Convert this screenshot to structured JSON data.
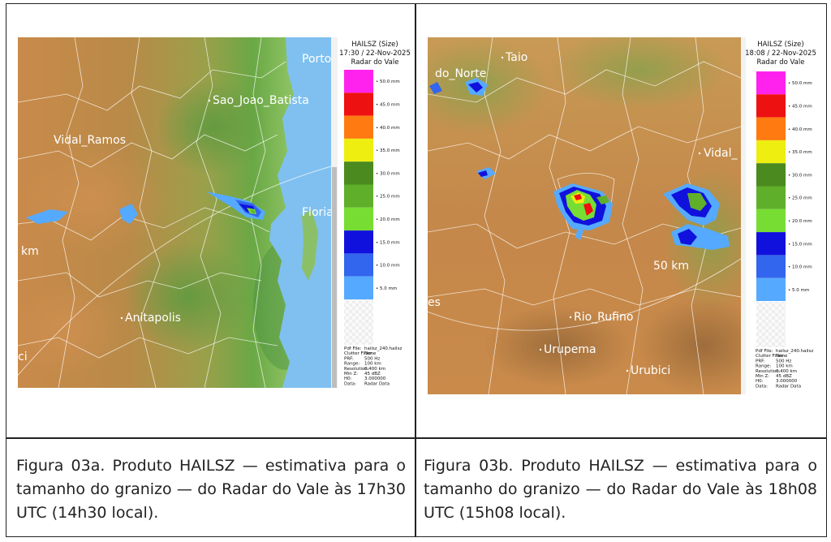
{
  "panel_a": {
    "legend": {
      "title": "HAILSZ (Size)",
      "time": "17:30 / 22-Nov-2025",
      "source": "Radar do Vale",
      "items": [
        {
          "label": "50.0 mm",
          "color": "#ff22ee"
        },
        {
          "label": "45.0 mm",
          "color": "#ee1111"
        },
        {
          "label": "40.0 mm",
          "color": "#ff7a11"
        },
        {
          "label": "35.0 mm",
          "color": "#eeee11"
        },
        {
          "label": "30.0 mm",
          "color": "#4a8a1e"
        },
        {
          "label": "25.0 mm",
          "color": "#5faf2a"
        },
        {
          "label": "20.0 mm",
          "color": "#77dd33"
        },
        {
          "label": "15.0 mm",
          "color": "#1111dd"
        },
        {
          "label": "10.0 mm",
          "color": "#3366ee"
        },
        {
          "label": "5.0 mm",
          "color": "#55aaff"
        }
      ]
    },
    "meta": [
      {
        "key": "Pdf File:",
        "value": "hailsz_240.hailsz"
      },
      {
        "key": "Clutter Filter:",
        "value": "None"
      },
      {
        "key": "PRF:",
        "value": "500 Hz"
      },
      {
        "key": "Range:",
        "value": "100 km"
      },
      {
        "key": "Resolution:",
        "value": "0.400 km"
      },
      {
        "key": "Min Z:",
        "value": "45 dBZ"
      },
      {
        "key": "H0:",
        "value": "3.000000"
      },
      {
        "key": "Data:",
        "value": "Radar Data"
      }
    ],
    "places": {
      "porto": "Porto",
      "sao_joao": "Sao_Joao_Batista",
      "vidal_ramos": "Vidal_Ramos",
      "floria": "Floria",
      "km": "km",
      "anitapolis": "Anitapolis",
      "ci": "ci"
    }
  },
  "panel_b": {
    "legend": {
      "title": "HAILSZ (Size)",
      "time": "18:08 / 22-Nov-2025",
      "source": "Radar do Vale",
      "items": [
        {
          "label": "50.0 mm",
          "color": "#ff22ee"
        },
        {
          "label": "45.0 mm",
          "color": "#ee1111"
        },
        {
          "label": "40.0 mm",
          "color": "#ff7a11"
        },
        {
          "label": "35.0 mm",
          "color": "#eeee11"
        },
        {
          "label": "30.0 mm",
          "color": "#4a8a1e"
        },
        {
          "label": "25.0 mm",
          "color": "#5faf2a"
        },
        {
          "label": "20.0 mm",
          "color": "#77dd33"
        },
        {
          "label": "15.0 mm",
          "color": "#1111dd"
        },
        {
          "label": "10.0 mm",
          "color": "#3366ee"
        },
        {
          "label": "5.0 mm",
          "color": "#55aaff"
        }
      ]
    },
    "meta": [
      {
        "key": "Pdf File:",
        "value": "hailsz_240.hailsz"
      },
      {
        "key": "Clutter Filter:",
        "value": "None"
      },
      {
        "key": "PRF:",
        "value": "500 Hz"
      },
      {
        "key": "Range:",
        "value": "100 km"
      },
      {
        "key": "Resolution:",
        "value": "0.400 km"
      },
      {
        "key": "Min Z:",
        "value": "45 dBZ"
      },
      {
        "key": "H0:",
        "value": "3.000000"
      },
      {
        "key": "Data:",
        "value": "Radar Data"
      }
    ],
    "places": {
      "taio": "Taio",
      "do_norte": "do_Norte",
      "vidal": "Vidal_",
      "km50": "50 km",
      "es": "es",
      "rio_rufino": "Rio_Rufino",
      "urupema": "Urupema",
      "urubici": "Urubici"
    }
  },
  "captions": {
    "a": "Figura 03a. Produto HAILSZ — estimativa para o tamanho do granizo — do Radar do Vale às 17h30 UTC (14h30 local).",
    "b": "Figura 03b. Produto HAILSZ — estimativa para o tamanho do granizo — do Radar do Vale às 18h08 UTC (15h08 local)."
  }
}
